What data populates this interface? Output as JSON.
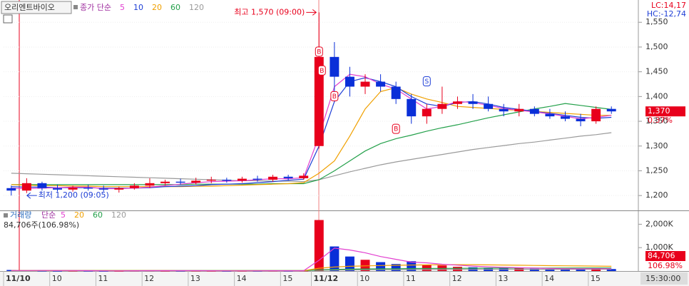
{
  "chart_data": [
    {
      "type": "candlestick",
      "stock_name": "오리엔트바이오",
      "ma_label": "종가 단순",
      "lc": "LC:14,17",
      "hc": "HC:-12,74",
      "categories": [
        "11/10",
        null,
        null,
        "10",
        null,
        null,
        "11",
        null,
        null,
        "12",
        null,
        null,
        "13",
        null,
        null,
        "14",
        null,
        null,
        "15",
        null,
        "11/12",
        null,
        null,
        "10",
        null,
        null,
        "11",
        null,
        null,
        "12",
        null,
        null,
        "13",
        null,
        null,
        "14",
        null,
        null,
        "15",
        null
      ],
      "cursor_time": "15:30:00",
      "open": [
        1215,
        1210,
        1225,
        1215,
        1212,
        1216,
        1214,
        1212,
        1215,
        1220,
        1225,
        1228,
        1226,
        1230,
        1232,
        1230,
        1234,
        1232,
        1238,
        1235,
        1300,
        1480,
        1440,
        1420,
        1430,
        1420,
        1395,
        1360,
        1375,
        1385,
        1390,
        1385,
        1375,
        1370,
        1375,
        1365,
        1360,
        1355,
        1350,
        1375
      ],
      "high": [
        1220,
        1235,
        1228,
        1222,
        1220,
        1222,
        1220,
        1218,
        1225,
        1235,
        1232,
        1234,
        1236,
        1238,
        1236,
        1238,
        1240,
        1242,
        1242,
        1245,
        1570,
        1510,
        1460,
        1445,
        1445,
        1430,
        1405,
        1385,
        1420,
        1400,
        1405,
        1400,
        1385,
        1385,
        1380,
        1375,
        1370,
        1365,
        1380,
        1380
      ],
      "low": [
        1200,
        1205,
        1210,
        1208,
        1208,
        1210,
        1208,
        1206,
        1212,
        1215,
        1220,
        1222,
        1222,
        1225,
        1226,
        1226,
        1228,
        1228,
        1230,
        1232,
        1295,
        1400,
        1400,
        1405,
        1410,
        1385,
        1345,
        1345,
        1365,
        1375,
        1375,
        1370,
        1360,
        1360,
        1360,
        1355,
        1350,
        1340,
        1345,
        1365
      ],
      "close": [
        1210,
        1225,
        1215,
        1212,
        1216,
        1214,
        1212,
        1215,
        1220,
        1225,
        1228,
        1226,
        1230,
        1232,
        1230,
        1234,
        1232,
        1238,
        1235,
        1240,
        1480,
        1440,
        1420,
        1430,
        1420,
        1395,
        1360,
        1375,
        1385,
        1390,
        1385,
        1375,
        1370,
        1375,
        1365,
        1360,
        1355,
        1350,
        1375,
        1370
      ],
      "up_color": "#e8001c",
      "down_color": "#0a2fd8",
      "series": [
        {
          "name": "5",
          "color": "#e23fd0",
          "values": [
            1215,
            1214,
            1215,
            1216,
            1217,
            1217,
            1214,
            1214,
            1215,
            1217,
            1220,
            1223,
            1226,
            1228,
            1229,
            1230,
            1232,
            1234,
            1234,
            1236,
            1320,
            1420,
            1445,
            1440,
            1425,
            1415,
            1395,
            1375,
            1380,
            1390,
            1388,
            1382,
            1376,
            1372,
            1369,
            1365,
            1360,
            1355,
            1358,
            1362
          ]
        },
        {
          "name": "10",
          "color": "#1f3fd6",
          "values": [
            1218,
            1217,
            1217,
            1216,
            1216,
            1216,
            1215,
            1215,
            1215,
            1216,
            1218,
            1219,
            1220,
            1222,
            1223,
            1224,
            1226,
            1228,
            1231,
            1233,
            1300,
            1390,
            1430,
            1438,
            1430,
            1420,
            1400,
            1385,
            1380,
            1388,
            1390,
            1385,
            1378,
            1374,
            1370,
            1366,
            1362,
            1358,
            1356,
            1358
          ]
        },
        {
          "name": "20",
          "color": "#f0a000",
          "values": [
            1222,
            1221,
            1220,
            1220,
            1219,
            1219,
            1218,
            1218,
            1218,
            1218,
            1218,
            1218,
            1219,
            1219,
            1220,
            1221,
            1222,
            1223,
            1224,
            1226,
            1245,
            1270,
            1320,
            1375,
            1410,
            1418,
            1405,
            1395,
            1388,
            1380,
            1378,
            1376,
            1374,
            1372,
            1370,
            1368,
            1366,
            1364,
            1362,
            1362
          ]
        },
        {
          "name": "60",
          "color": "#23a04a",
          "values": [
            1222,
            1222,
            1222,
            1222,
            1222,
            1222,
            1222,
            1222,
            1222,
            1222,
            1222,
            1222,
            1223,
            1223,
            1223,
            1223,
            1223,
            1224,
            1224,
            1224,
            1232,
            1250,
            1270,
            1290,
            1305,
            1315,
            1322,
            1330,
            1337,
            1343,
            1350,
            1357,
            1363,
            1369,
            1375,
            1380,
            1386,
            1382,
            1378,
            1374
          ]
        },
        {
          "name": "120",
          "color": "#9a9a9a",
          "values": [
            1245,
            1244,
            1243,
            1242,
            1241,
            1240,
            1239,
            1238,
            1237,
            1236,
            1235,
            1234,
            1233,
            1232,
            1231,
            1230,
            1230,
            1229,
            1229,
            1228,
            1232,
            1240,
            1248,
            1255,
            1262,
            1268,
            1273,
            1278,
            1283,
            1288,
            1293,
            1297,
            1301,
            1305,
            1308,
            1312,
            1316,
            1320,
            1323,
            1327
          ]
        }
      ],
      "ylim": [
        1170,
        1595
      ],
      "yticks": [
        {
          "value": 1200,
          "label": "1,200"
        },
        {
          "value": 1250,
          "label": "1,250"
        },
        {
          "value": 1300,
          "label": "1,300"
        },
        {
          "value": 1350,
          "label": "1,350"
        },
        {
          "value": 1400,
          "label": "1,400"
        },
        {
          "value": 1450,
          "label": "1,450"
        },
        {
          "value": 1500,
          "label": "1,500"
        },
        {
          "value": 1550,
          "label": "1,550"
        }
      ],
      "annotations": [
        {
          "text": "최고 1,570 (09:00)",
          "value": 1570,
          "at": 20
        },
        {
          "text": "최저 1,200 (09:05)",
          "value": 1200,
          "at": 0
        }
      ],
      "signals": [
        {
          "label": "B",
          "at": 20,
          "value": 1490
        },
        {
          "label": "B",
          "at": 20,
          "value": 1452
        },
        {
          "label": "B",
          "at": 21,
          "value": 1400
        },
        {
          "label": "B",
          "at": 25,
          "value": 1334
        },
        {
          "label": "S",
          "at": 27,
          "value": 1430
        }
      ],
      "last_price": {
        "value": 1370,
        "label": "1,370"
      },
      "last_change": "0.37%"
    },
    {
      "type": "volume",
      "title": "거래량",
      "ma_label": "단순",
      "summary": "84,706주(106.98%)",
      "values": [
        45,
        30,
        12,
        8,
        15,
        10,
        6,
        9,
        20,
        25,
        12,
        8,
        14,
        10,
        7,
        12,
        9,
        15,
        10,
        18,
        2180,
        1050,
        620,
        480,
        380,
        300,
        420,
        260,
        240,
        180,
        160,
        140,
        120,
        110,
        100,
        90,
        95,
        80,
        130,
        84.706
      ],
      "series": [
        {
          "name": "5",
          "color": "#e23fd0",
          "values": [
            20,
            22,
            25,
            22,
            20,
            14,
            10,
            10,
            12,
            14,
            15,
            16,
            14,
            11,
            10,
            10,
            10,
            11,
            11,
            13,
            460,
            980,
            900,
            780,
            620,
            500,
            380,
            350,
            290,
            250,
            210,
            180,
            160,
            140,
            125,
            110,
            100,
            95,
            100,
            95
          ]
        },
        {
          "name": "20",
          "color": "#f0a000",
          "values": [
            20,
            20,
            20,
            19,
            19,
            18,
            18,
            17,
            17,
            17,
            17,
            16,
            16,
            16,
            16,
            15,
            15,
            15,
            15,
            15,
            120,
            170,
            200,
            220,
            235,
            245,
            255,
            262,
            268,
            272,
            270,
            262,
            255,
            246,
            238,
            230,
            222,
            215,
            210,
            200
          ]
        },
        {
          "name": "60",
          "color": "#23a04a",
          "values": [
            18,
            18,
            18,
            18,
            18,
            18,
            18,
            18,
            18,
            18,
            18,
            18,
            18,
            18,
            18,
            17,
            17,
            17,
            17,
            17,
            52,
            70,
            80,
            88,
            94,
            99,
            106,
            110,
            114,
            117,
            120,
            122,
            124,
            126,
            127,
            128,
            129,
            130,
            131,
            132
          ]
        },
        {
          "name": "120",
          "color": "#9a9a9a",
          "values": [
            15,
            15,
            15,
            15,
            15,
            15,
            15,
            15,
            15,
            15,
            15,
            15,
            15,
            15,
            15,
            15,
            15,
            15,
            15,
            15,
            33,
            42,
            47,
            51,
            54,
            57,
            60,
            62,
            64,
            66,
            67,
            69,
            70,
            71,
            72,
            73,
            74,
            75,
            76,
            77
          ]
        }
      ],
      "ylim": [
        0,
        2500
      ],
      "yticks": [
        {
          "value": 1000,
          "label": "1,000K"
        },
        {
          "value": 2000,
          "label": "2,000K"
        }
      ],
      "last_volume": "84,706",
      "last_ratio": "106.98%"
    }
  ]
}
